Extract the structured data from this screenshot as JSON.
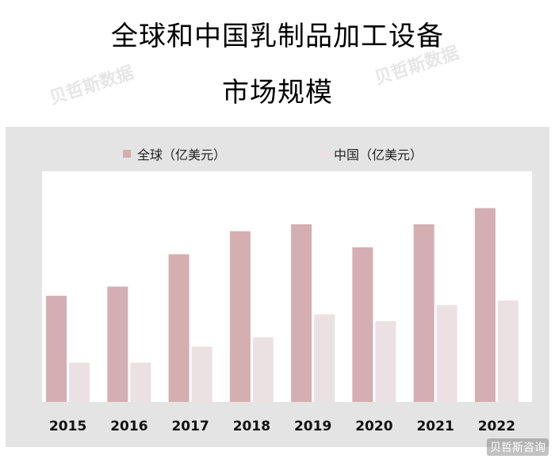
{
  "title_line1": "全球和中国乳制品加工设备",
  "title_line2": "市场规模",
  "watermark_top": "贝哲斯数据",
  "watermark_bottom": "贝哲斯咨询",
  "colors": {
    "global": "#d4aeb1",
    "china": "#ece1e2",
    "frame": "#e4e4e4"
  },
  "chart_data": {
    "type": "bar",
    "categories": [
      "2015",
      "2016",
      "2017",
      "2018",
      "2019",
      "2020",
      "2021",
      "2022"
    ],
    "series": [
      {
        "name": "全球（亿美元）",
        "values": [
          46,
          50,
          64,
          74,
          77,
          67,
          77,
          84
        ]
      },
      {
        "name": "中国（亿美元）",
        "values": [
          17,
          17,
          24,
          28,
          38,
          35,
          42,
          44
        ]
      }
    ],
    "title": "全球和中国乳制品加工设备市场规模",
    "xlabel": "",
    "ylabel": "",
    "ylim": [
      0,
      100
    ],
    "grid": false,
    "legend_position": "top-center"
  }
}
